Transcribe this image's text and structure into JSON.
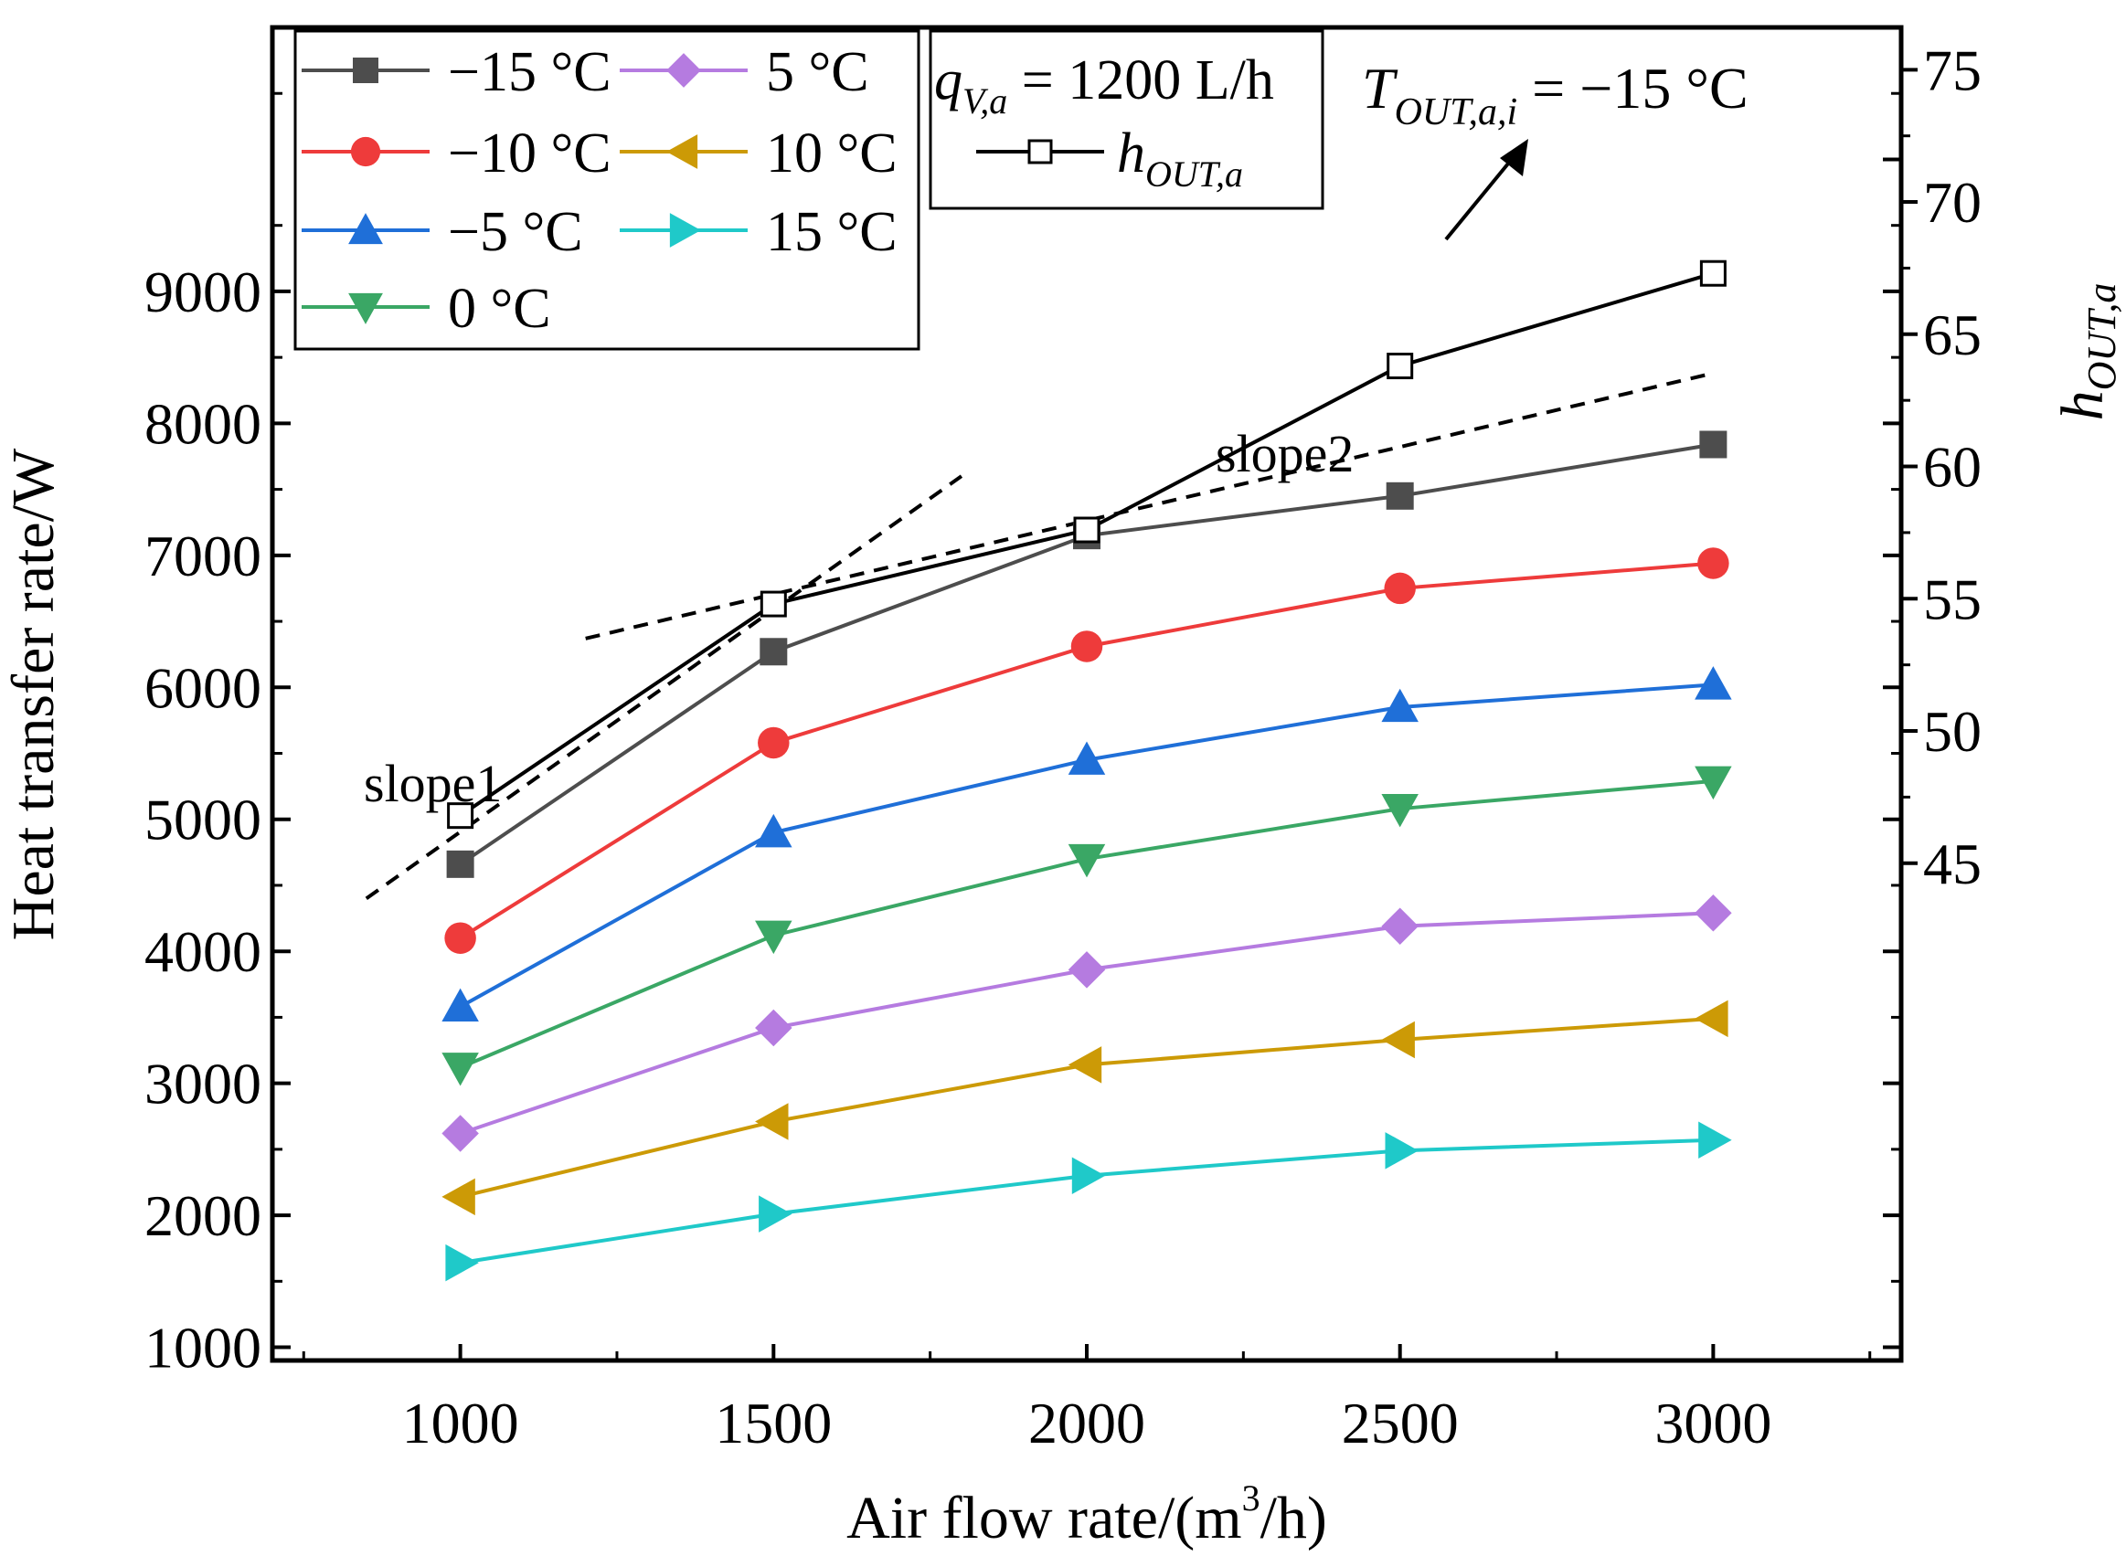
{
  "chart_data": {
    "type": "line",
    "xlabel": "Air flow rate/(m3/h)",
    "xlabel_main": "Air flow rate/(m",
    "xlabel_sup": "3",
    "xlabel_end": "/h)",
    "ylabel": "Heat transfer rate/W",
    "y2label_base": "h",
    "y2label_sub": "OUT,a",
    "x": [
      1000,
      1500,
      2000,
      2500,
      3000
    ],
    "x_ticks": [
      "1000",
      "1500",
      "2000",
      "2500",
      "3000"
    ],
    "xlim": [
      700,
      3300
    ],
    "ylim": [
      900,
      11000
    ],
    "y_ticks": [
      "1000",
      "2000",
      "3000",
      "4000",
      "5000",
      "6000",
      "7000",
      "8000",
      "9000"
    ],
    "y2lim": [
      26.2,
      76.6
    ],
    "y2_ticks": [
      "45",
      "50",
      "55",
      "60",
      "65",
      "70",
      "75"
    ],
    "series": [
      {
        "name": "−15 °C",
        "color": "#4d4d4d",
        "marker": "square",
        "values": [
          4660,
          6270,
          7150,
          7450,
          7840
        ]
      },
      {
        "name": "−10 °C",
        "color": "#ee3b3b",
        "marker": "circle",
        "values": [
          4100,
          5580,
          6310,
          6750,
          6940
        ]
      },
      {
        "name": "−5 °C",
        "color": "#1f6fd8",
        "marker": "triangle-up",
        "values": [
          3580,
          4900,
          5450,
          5850,
          6020
        ]
      },
      {
        "name": "0 °C",
        "color": "#3aa765",
        "marker": "triangle-down",
        "values": [
          3120,
          4120,
          4700,
          5080,
          5290
        ]
      },
      {
        "name": "5 °C",
        "color": "#b57be0",
        "marker": "diamond",
        "values": [
          2620,
          3420,
          3860,
          4190,
          4290
        ]
      },
      {
        "name": "10 °C",
        "color": "#cc9a06",
        "marker": "triangle-left",
        "values": [
          2140,
          2710,
          3140,
          3330,
          3490
        ]
      },
      {
        "name": "15 °C",
        "color": "#1fc9c9",
        "marker": "triangle-right",
        "values": [
          1640,
          2010,
          2300,
          2490,
          2570
        ]
      }
    ],
    "h_series": {
      "name": "h_OUT,a",
      "color": "#000000",
      "marker": "open-square",
      "axis": "right",
      "values": [
        46.8,
        54.8,
        57.6,
        63.8,
        67.3
      ]
    },
    "slope_lines": [
      {
        "label": "slope1",
        "from": [
          850,
          4400
        ],
        "to": [
          1800,
          7600
        ]
      },
      {
        "label": "slope2",
        "from": [
          1200,
          6370
        ],
        "to": [
          3000,
          8380
        ]
      }
    ],
    "annotations": {
      "flow_base": "q",
      "flow_sub": "V,a",
      "flow_rest": " = 1200 L/h",
      "temp_base": "T",
      "temp_sub": "OUT,a,i",
      "temp_rest": " =  −15 °C",
      "slope1": "slope1",
      "slope2": "slope2"
    },
    "legend": {
      "placement": "top-left",
      "h_legend_base": "h",
      "h_legend_sub": "OUT,a"
    }
  }
}
